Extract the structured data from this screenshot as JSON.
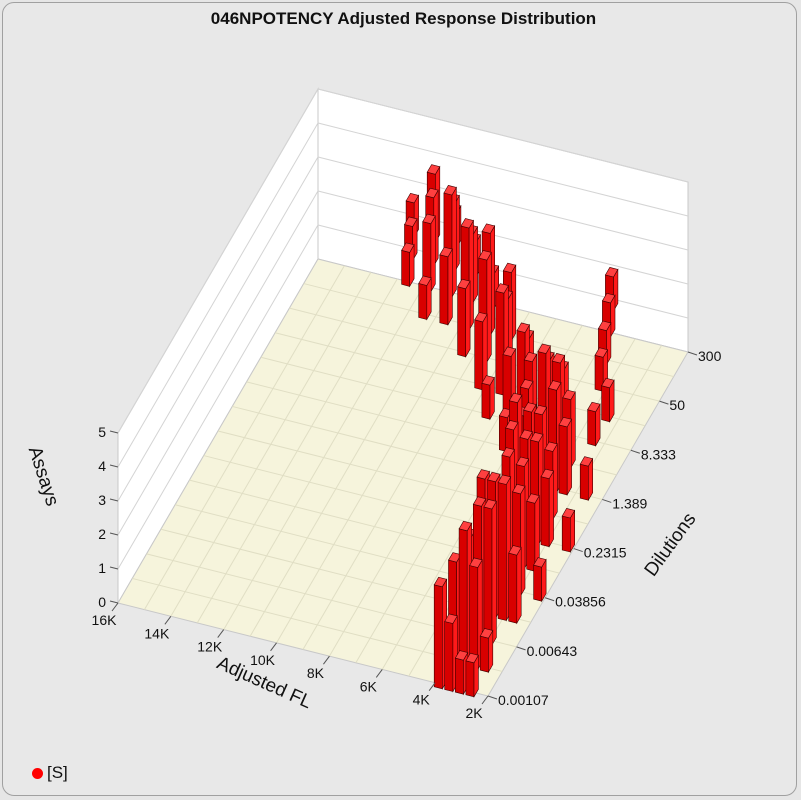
{
  "chart_data": {
    "type": "bar3d",
    "title": "046NPOTENCY Adjusted Response Distribution",
    "xlabel": "Adjusted FL",
    "ylabel": "Dilutions",
    "zlabel": "Assays",
    "x_ticks": [
      "16K",
      "14K",
      "12K",
      "10K",
      "8K",
      "6K",
      "4K",
      "2K"
    ],
    "y_ticks": [
      "0.00107",
      "0.00643",
      "0.03856",
      "0.2315",
      "1.389",
      "8.333",
      "50",
      "300"
    ],
    "z_ticks": [
      "0",
      "1",
      "2",
      "3",
      "4",
      "5"
    ],
    "zlim": [
      0,
      5
    ],
    "bar_color": "#ff0000",
    "legend": [
      {
        "name": "[S]",
        "color": "#ff0000"
      }
    ],
    "series": [
      {
        "name": "[S]",
        "points": [
          {
            "x": 3000,
            "y": 0.00107,
            "z": 1
          },
          {
            "x": 3400,
            "y": 0.00107,
            "z": 2
          },
          {
            "x": 3800,
            "y": 0.00107,
            "z": 3
          },
          {
            "x": 2600,
            "y": 0.00107,
            "z": 1
          },
          {
            "x": 3000,
            "y": 0.00263,
            "z": 3
          },
          {
            "x": 3400,
            "y": 0.00263,
            "z": 4
          },
          {
            "x": 3800,
            "y": 0.00263,
            "z": 3
          },
          {
            "x": 2600,
            "y": 0.00263,
            "z": 1
          },
          {
            "x": 3000,
            "y": 0.00643,
            "z": 4
          },
          {
            "x": 3400,
            "y": 0.00643,
            "z": 4
          },
          {
            "x": 3800,
            "y": 0.00643,
            "z": 3
          },
          {
            "x": 4200,
            "y": 0.00643,
            "z": 2
          },
          {
            "x": 3000,
            "y": 0.0157,
            "z": 4
          },
          {
            "x": 3400,
            "y": 0.0157,
            "z": 4
          },
          {
            "x": 3800,
            "y": 0.0157,
            "z": 4
          },
          {
            "x": 2600,
            "y": 0.0157,
            "z": 2
          },
          {
            "x": 3000,
            "y": 0.03856,
            "z": 3
          },
          {
            "x": 3400,
            "y": 0.03856,
            "z": 4
          },
          {
            "x": 3800,
            "y": 0.03856,
            "z": 3
          },
          {
            "x": 4200,
            "y": 0.03856,
            "z": 2
          },
          {
            "x": 2200,
            "y": 0.03856,
            "z": 1
          },
          {
            "x": 3000,
            "y": 0.0945,
            "z": 2
          },
          {
            "x": 3400,
            "y": 0.0945,
            "z": 3
          },
          {
            "x": 3800,
            "y": 0.0945,
            "z": 4
          },
          {
            "x": 4600,
            "y": 0.0945,
            "z": 2
          },
          {
            "x": 3000,
            "y": 0.2315,
            "z": 2
          },
          {
            "x": 3400,
            "y": 0.2315,
            "z": 3
          },
          {
            "x": 3800,
            "y": 0.2315,
            "z": 3
          },
          {
            "x": 4200,
            "y": 0.2315,
            "z": 4
          },
          {
            "x": 2200,
            "y": 0.2315,
            "z": 1
          },
          {
            "x": 3400,
            "y": 0.567,
            "z": 2
          },
          {
            "x": 3800,
            "y": 0.567,
            "z": 3
          },
          {
            "x": 4200,
            "y": 0.567,
            "z": 3
          },
          {
            "x": 4600,
            "y": 0.567,
            "z": 2
          },
          {
            "x": 3400,
            "y": 1.389,
            "z": 2
          },
          {
            "x": 3800,
            "y": 1.389,
            "z": 3
          },
          {
            "x": 4200,
            "y": 1.389,
            "z": 4
          },
          {
            "x": 5000,
            "y": 1.389,
            "z": 2
          },
          {
            "x": 2600,
            "y": 1.389,
            "z": 1
          },
          {
            "x": 3800,
            "y": 3.4,
            "z": 2
          },
          {
            "x": 4200,
            "y": 3.4,
            "z": 3
          },
          {
            "x": 4600,
            "y": 3.4,
            "z": 3
          },
          {
            "x": 5400,
            "y": 3.4,
            "z": 2
          },
          {
            "x": 6200,
            "y": 3.4,
            "z": 1
          },
          {
            "x": 5800,
            "y": 8.333,
            "z": 2
          },
          {
            "x": 6600,
            "y": 8.333,
            "z": 2
          },
          {
            "x": 7400,
            "y": 8.333,
            "z": 1
          },
          {
            "x": 4600,
            "y": 8.333,
            "z": 2
          },
          {
            "x": 3400,
            "y": 8.333,
            "z": 1
          },
          {
            "x": 6600,
            "y": 20,
            "z": 2
          },
          {
            "x": 7400,
            "y": 20,
            "z": 3
          },
          {
            "x": 8200,
            "y": 20,
            "z": 2
          },
          {
            "x": 5400,
            "y": 20,
            "z": 1
          },
          {
            "x": 3400,
            "y": 20,
            "z": 1
          },
          {
            "x": 7800,
            "y": 50,
            "z": 2
          },
          {
            "x": 8600,
            "y": 50,
            "z": 3
          },
          {
            "x": 9400,
            "y": 50,
            "z": 2
          },
          {
            "x": 7000,
            "y": 50,
            "z": 1
          },
          {
            "x": 4200,
            "y": 50,
            "z": 1
          },
          {
            "x": 9000,
            "y": 120,
            "z": 3
          },
          {
            "x": 9800,
            "y": 120,
            "z": 3
          },
          {
            "x": 10600,
            "y": 120,
            "z": 2
          },
          {
            "x": 8200,
            "y": 120,
            "z": 2
          },
          {
            "x": 11400,
            "y": 120,
            "z": 1
          },
          {
            "x": 10200,
            "y": 300,
            "z": 2
          },
          {
            "x": 11000,
            "y": 300,
            "z": 3
          },
          {
            "x": 11800,
            "y": 300,
            "z": 2
          },
          {
            "x": 12600,
            "y": 300,
            "z": 1
          },
          {
            "x": 9400,
            "y": 300,
            "z": 1
          },
          {
            "x": 11400,
            "y": 700,
            "z": 2
          },
          {
            "x": 12200,
            "y": 700,
            "z": 2
          },
          {
            "x": 13000,
            "y": 700,
            "z": 1
          },
          {
            "x": 10600,
            "y": 700,
            "z": 1
          },
          {
            "x": 12600,
            "y": 1500,
            "z": 2
          },
          {
            "x": 13400,
            "y": 1500,
            "z": 1
          },
          {
            "x": 11800,
            "y": 1500,
            "z": 1
          },
          {
            "x": 5000,
            "y": 300,
            "z": 1
          },
          {
            "x": 4600,
            "y": 120,
            "z": 1
          },
          {
            "x": 5400,
            "y": 700,
            "z": 1
          }
        ]
      }
    ]
  }
}
